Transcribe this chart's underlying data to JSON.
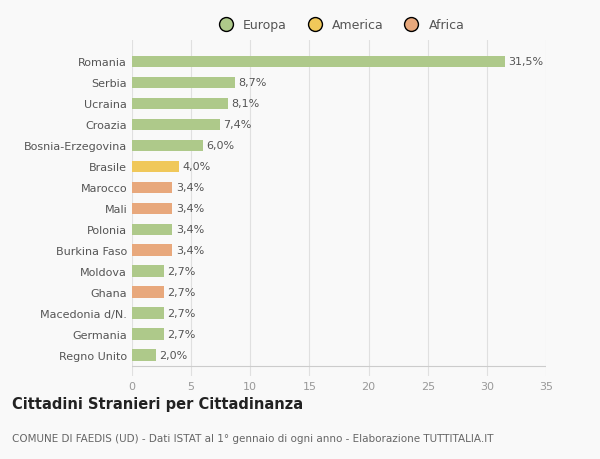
{
  "categories": [
    "Romania",
    "Serbia",
    "Ucraina",
    "Croazia",
    "Bosnia-Erzegovina",
    "Brasile",
    "Marocco",
    "Mali",
    "Polonia",
    "Burkina Faso",
    "Moldova",
    "Ghana",
    "Macedonia d/N.",
    "Germania",
    "Regno Unito"
  ],
  "values": [
    31.5,
    8.7,
    8.1,
    7.4,
    6.0,
    4.0,
    3.4,
    3.4,
    3.4,
    3.4,
    2.7,
    2.7,
    2.7,
    2.7,
    2.0
  ],
  "continents": [
    "Europa",
    "Europa",
    "Europa",
    "Europa",
    "Europa",
    "America",
    "Africa",
    "Africa",
    "Europa",
    "Africa",
    "Europa",
    "Africa",
    "Europa",
    "Europa",
    "Europa"
  ],
  "labels": [
    "31,5%",
    "8,7%",
    "8,1%",
    "7,4%",
    "6,0%",
    "4,0%",
    "3,4%",
    "3,4%",
    "3,4%",
    "3,4%",
    "2,7%",
    "2,7%",
    "2,7%",
    "2,7%",
    "2,0%"
  ],
  "colors": {
    "Europa": "#aec98a",
    "America": "#f0c85a",
    "Africa": "#e8a87c"
  },
  "background_color": "#f9f9f9",
  "grid_color": "#e0e0e0",
  "title1": "Cittadini Stranieri per Cittadinanza",
  "title2": "COMUNE DI FAEDIS (UD) - Dati ISTAT al 1° gennaio di ogni anno - Elaborazione TUTTITALIA.IT",
  "xlim": [
    0,
    35
  ],
  "xticks": [
    0,
    5,
    10,
    15,
    20,
    25,
    30,
    35
  ],
  "bar_height": 0.55,
  "label_fontsize": 8,
  "tick_fontsize": 8,
  "legend_fontsize": 9,
  "title1_fontsize": 10.5,
  "title2_fontsize": 7.5
}
